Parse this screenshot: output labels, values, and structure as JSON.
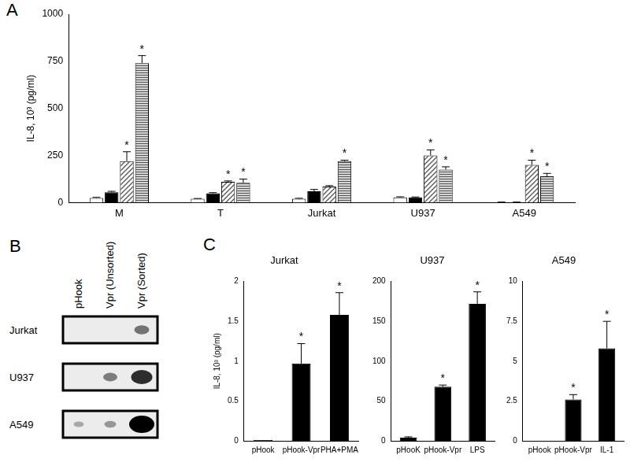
{
  "chart_data": [
    {
      "type": "bar",
      "panel": "A",
      "y_label": "IL-8, 10³ (pg/ml)",
      "categories": [
        "M",
        "T",
        "Jurkat",
        "U937",
        "A549"
      ],
      "annotation": "*",
      "series": [
        {
          "color": "#ffffff",
          "marker": "solid",
          "values": [
            25,
            20,
            20,
            28,
            2
          ],
          "errors": [
            3,
            2,
            3,
            3,
            1
          ],
          "significant": [
            false,
            false,
            false,
            false,
            false
          ]
        },
        {
          "color": "#000000",
          "marker": "solid",
          "values": [
            55,
            50,
            60,
            28,
            2
          ],
          "errors": [
            5,
            3,
            10,
            2,
            1
          ],
          "significant": [
            false,
            false,
            false,
            false,
            false
          ]
        },
        {
          "color": "#555555",
          "marker": "diagonal",
          "values": [
            220,
            110,
            85,
            250,
            200
          ],
          "errors": [
            50,
            5,
            5,
            30,
            25
          ],
          "significant": [
            true,
            true,
            false,
            true,
            true
          ]
        },
        {
          "color": "#555555",
          "marker": "horizontal",
          "values": [
            740,
            105,
            220,
            175,
            140
          ],
          "errors": [
            40,
            20,
            5,
            15,
            15
          ],
          "significant": [
            true,
            true,
            true,
            true,
            true
          ]
        }
      ],
      "ylim": [
        0,
        1000
      ],
      "yticks": [
        0,
        250,
        500,
        750,
        1000
      ],
      "grid": false,
      "legend": false
    },
    {
      "type": "bar",
      "panel": "C",
      "title": "Jurkat",
      "y_label": "IL-8, 10³ (pg/ml)",
      "categories": [
        "pHook",
        "pHook-Vpr",
        "PHA+PMA"
      ],
      "annotation": "*",
      "color": "#000000",
      "values": [
        0.01,
        0.97,
        1.58
      ],
      "errors": [
        0,
        0.25,
        0.28
      ],
      "significant": [
        false,
        true,
        true
      ],
      "ylim": [
        0,
        2
      ],
      "yticks": [
        0,
        0.5,
        1,
        1.5,
        2
      ],
      "grid": false,
      "legend": false
    },
    {
      "type": "bar",
      "title": "U937",
      "categories": [
        "pHooK",
        "pHook-Vpr",
        "LPS"
      ],
      "annotation": "*",
      "color": "#000000",
      "values": [
        4,
        68,
        172
      ],
      "errors": [
        1,
        2,
        15
      ],
      "significant": [
        false,
        true,
        true
      ],
      "ylim": [
        0,
        200
      ],
      "yticks": [
        0,
        50,
        100,
        150,
        200
      ],
      "grid": false,
      "legend": false
    },
    {
      "type": "bar",
      "title": "A549",
      "categories": [
        "pHook",
        "pHook-Vpr",
        "IL-1"
      ],
      "annotation": "*",
      "color": "#000000",
      "values": [
        0,
        2.6,
        5.8
      ],
      "errors": [
        0,
        0.3,
        1.7
      ],
      "significant": [
        false,
        true,
        true
      ],
      "ylim": [
        0,
        10
      ],
      "yticks": [
        0,
        2.5,
        5,
        7.5,
        10
      ],
      "grid": false,
      "legend": false
    }
  ],
  "blot": {
    "panel": "B",
    "columns": [
      "pHook",
      "Vpr (Unsorted)",
      "Vpr (Sorted)"
    ],
    "rows": [
      "Jurkat",
      "U937",
      "A549"
    ],
    "band_intensity": [
      [
        0,
        0,
        0.35
      ],
      [
        0,
        0.3,
        0.75
      ],
      [
        0.05,
        0.15,
        1
      ]
    ]
  }
}
